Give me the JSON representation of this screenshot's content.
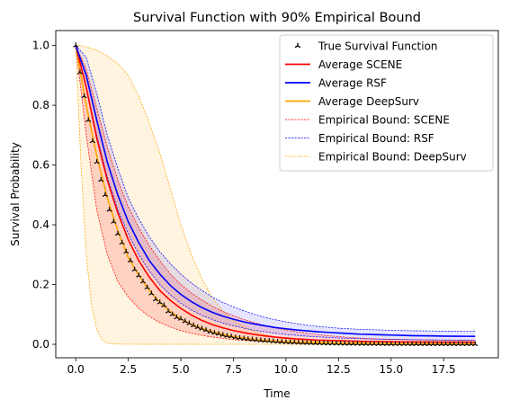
{
  "chart_data": {
    "type": "line",
    "title": "Survival Function with 90% Empirical Bound",
    "xlabel": "Time",
    "ylabel": "Survival Probability",
    "xlim": [
      -0.95,
      20.1
    ],
    "ylim": [
      -0.045,
      1.05
    ],
    "xticks": [
      0.0,
      2.5,
      5.0,
      7.5,
      10.0,
      12.5,
      15.0,
      17.5
    ],
    "xtick_labels": [
      "0.0",
      "2.5",
      "5.0",
      "7.5",
      "10.0",
      "12.5",
      "15.0",
      "17.5"
    ],
    "yticks": [
      0.0,
      0.2,
      0.4,
      0.6,
      0.8,
      1.0
    ],
    "ytick_labels": [
      "0.0",
      "0.2",
      "0.4",
      "0.6",
      "0.8",
      "1.0"
    ],
    "grid": false,
    "legend_position": "top-right",
    "colors": {
      "scene": "#ff0000",
      "rsf": "#0000ff",
      "deepsurv": "#ffa500",
      "true": "#000000"
    },
    "series": [
      {
        "name": "True Survival Function",
        "style": "marker",
        "x": [
          0.0,
          0.2,
          0.4,
          0.6,
          0.8,
          1.0,
          1.2,
          1.4,
          1.6,
          1.8,
          2.0,
          2.2,
          2.4,
          2.6,
          2.8,
          3.0,
          3.2,
          3.4,
          3.6,
          3.8,
          4.0,
          4.2,
          4.4,
          4.6,
          4.8,
          5.0,
          5.2,
          5.4,
          5.6,
          5.8,
          6.0,
          6.2,
          6.4,
          6.6,
          6.8,
          7.0,
          7.2,
          7.4,
          7.6,
          7.8,
          8.0,
          8.2,
          8.4,
          8.6,
          8.8,
          9.0,
          9.2,
          9.4,
          9.6,
          9.8,
          10.0,
          10.2,
          10.4,
          10.6,
          10.8,
          11.0,
          11.2,
          11.4,
          11.6,
          11.8,
          12.0,
          12.2,
          12.4,
          12.6,
          12.8,
          13.0,
          13.2,
          13.4,
          13.6,
          13.8,
          14.0,
          14.2,
          14.4,
          14.6,
          14.8,
          15.0,
          15.2,
          15.4,
          15.6,
          15.8,
          16.0,
          16.2,
          16.4,
          16.6,
          16.8,
          17.0,
          17.2,
          17.4,
          17.6,
          17.8,
          18.0,
          18.2,
          18.4,
          18.6,
          18.8,
          19.0
        ],
        "y": [
          1.0,
          0.91,
          0.83,
          0.75,
          0.68,
          0.61,
          0.55,
          0.5,
          0.45,
          0.41,
          0.37,
          0.34,
          0.31,
          0.28,
          0.25,
          0.23,
          0.21,
          0.19,
          0.17,
          0.15,
          0.14,
          0.13,
          0.11,
          0.1,
          0.09,
          0.085,
          0.077,
          0.07,
          0.063,
          0.057,
          0.052,
          0.047,
          0.042,
          0.038,
          0.035,
          0.031,
          0.028,
          0.026,
          0.023,
          0.021,
          0.019,
          0.017,
          0.016,
          0.014,
          0.013,
          0.012,
          0.011,
          0.0095,
          0.0086,
          0.0078,
          0.007,
          0.0063,
          0.0057,
          0.0052,
          0.0047,
          0.0042,
          0.0038,
          0.0034,
          0.0031,
          0.0028,
          0.0025,
          0.0023,
          0.0021,
          0.0019,
          0.0017,
          0.0015,
          0.0014,
          0.0013,
          0.0011,
          0.001,
          0.0009,
          0.0008,
          0.0007,
          0.0007,
          0.0006,
          0.0006,
          0.0005,
          0.0005,
          0.0004,
          0.0004,
          0.0003,
          0.0003,
          0.0003,
          0.0003,
          0.0002,
          0.0002,
          0.0002,
          0.0002,
          0.0002,
          0.0001,
          0.0001,
          0.0001,
          0.0001,
          0.0001,
          0.0001,
          0.0001
        ]
      },
      {
        "name": "Average SCENE",
        "style": "line",
        "x": [
          0.0,
          0.5,
          1.0,
          1.5,
          2.0,
          2.5,
          3.0,
          3.5,
          4.0,
          4.5,
          5.0,
          5.5,
          6.0,
          6.5,
          7.0,
          7.5,
          8.0,
          8.5,
          9.0,
          9.5,
          10.0,
          10.5,
          11.0,
          11.5,
          12.0,
          12.5,
          13.0,
          13.5,
          14.0,
          14.5,
          15.0,
          15.5,
          16.0,
          16.5,
          17.0,
          17.5,
          18.0,
          18.5,
          19.0
        ],
        "y": [
          1.0,
          0.86,
          0.69,
          0.55,
          0.44,
          0.35,
          0.28,
          0.225,
          0.18,
          0.147,
          0.12,
          0.098,
          0.08,
          0.066,
          0.055,
          0.046,
          0.039,
          0.033,
          0.028,
          0.024,
          0.021,
          0.018,
          0.016,
          0.014,
          0.013,
          0.012,
          0.011,
          0.01,
          0.0095,
          0.009,
          0.0085,
          0.008,
          0.0078,
          0.0076,
          0.0074,
          0.0072,
          0.0071,
          0.007,
          0.007
        ]
      },
      {
        "name": "Average RSF",
        "style": "line",
        "x": [
          0.0,
          0.5,
          1.0,
          1.5,
          2.0,
          2.5,
          3.0,
          3.5,
          4.0,
          4.5,
          5.0,
          5.5,
          6.0,
          6.5,
          7.0,
          7.5,
          8.0,
          8.5,
          9.0,
          9.5,
          10.0,
          10.5,
          11.0,
          11.5,
          12.0,
          12.5,
          13.0,
          13.5,
          14.0,
          14.5,
          15.0,
          15.5,
          16.0,
          16.5,
          17.0,
          17.5,
          18.0,
          18.5,
          19.0
        ],
        "y": [
          1.0,
          0.9,
          0.75,
          0.61,
          0.5,
          0.41,
          0.34,
          0.28,
          0.235,
          0.197,
          0.167,
          0.143,
          0.123,
          0.107,
          0.094,
          0.084,
          0.075,
          0.068,
          0.062,
          0.056,
          0.052,
          0.048,
          0.045,
          0.042,
          0.04,
          0.038,
          0.036,
          0.034,
          0.033,
          0.032,
          0.031,
          0.03,
          0.029,
          0.0285,
          0.028,
          0.0275,
          0.027,
          0.0268,
          0.0265
        ]
      },
      {
        "name": "Average DeepSurv",
        "style": "line",
        "x": [
          0.0,
          0.5,
          1.0,
          1.5,
          2.0,
          2.5,
          3.0,
          3.5,
          4.0,
          4.5,
          5.0,
          5.5,
          6.0,
          6.5,
          7.0,
          7.5,
          8.0,
          8.5,
          9.0,
          9.5,
          10.0,
          10.5,
          11.0,
          11.5,
          12.0,
          12.5,
          13.0,
          13.5,
          14.0,
          14.5,
          15.0,
          15.5,
          16.0,
          16.5,
          17.0,
          17.5,
          18.0,
          18.5,
          19.0
        ],
        "y": [
          1.0,
          0.8,
          0.63,
          0.49,
          0.38,
          0.29,
          0.23,
          0.18,
          0.14,
          0.11,
          0.085,
          0.067,
          0.053,
          0.042,
          0.033,
          0.026,
          0.021,
          0.017,
          0.013,
          0.011,
          0.009,
          0.007,
          0.006,
          0.005,
          0.004,
          0.0035,
          0.003,
          0.0025,
          0.002,
          0.0018,
          0.0015,
          0.0013,
          0.0011,
          0.001,
          0.0009,
          0.0008,
          0.0007,
          0.0006,
          0.0005
        ]
      }
    ],
    "bounds": [
      {
        "name": "Empirical Bound: SCENE",
        "x": [
          0.0,
          0.5,
          1.0,
          1.5,
          2.0,
          2.5,
          3.0,
          3.5,
          4.0,
          4.5,
          5.0,
          5.5,
          6.0,
          6.5,
          7.0,
          7.5,
          8.0,
          8.5,
          9.0,
          9.5,
          10.0,
          10.5,
          11.0,
          11.5,
          12.0,
          12.5,
          13.0,
          13.5,
          14.0,
          14.5,
          15.0,
          15.5,
          16.0,
          16.5,
          17.0,
          17.5,
          18.0,
          18.5,
          19.0
        ],
        "lower": [
          1.0,
          0.7,
          0.45,
          0.3,
          0.21,
          0.158,
          0.12,
          0.093,
          0.073,
          0.058,
          0.046,
          0.037,
          0.03,
          0.024,
          0.02,
          0.016,
          0.013,
          0.011,
          0.009,
          0.007,
          0.006,
          0.005,
          0.004,
          0.0035,
          0.003,
          0.0025,
          0.002,
          0.0018,
          0.0015,
          0.0013,
          0.0011,
          0.001,
          0.0009,
          0.0008,
          0.0007,
          0.0006,
          0.0006,
          0.0005,
          0.0005
        ],
        "upper": [
          1.0,
          0.92,
          0.79,
          0.66,
          0.55,
          0.46,
          0.39,
          0.33,
          0.28,
          0.235,
          0.2,
          0.172,
          0.148,
          0.127,
          0.11,
          0.096,
          0.083,
          0.072,
          0.063,
          0.055,
          0.048,
          0.042,
          0.037,
          0.033,
          0.029,
          0.026,
          0.023,
          0.021,
          0.019,
          0.018,
          0.017,
          0.016,
          0.0155,
          0.015,
          0.0145,
          0.014,
          0.014,
          0.0135,
          0.0135
        ]
      },
      {
        "name": "Empirical Bound: RSF",
        "x": [
          0.0,
          0.5,
          1.0,
          1.5,
          2.0,
          2.5,
          3.0,
          3.5,
          4.0,
          4.5,
          5.0,
          5.5,
          6.0,
          6.5,
          7.0,
          7.5,
          8.0,
          8.5,
          9.0,
          9.5,
          10.0,
          10.5,
          11.0,
          11.5,
          12.0,
          12.5,
          13.0,
          13.5,
          14.0,
          14.5,
          15.0,
          15.5,
          16.0,
          16.5,
          17.0,
          17.5,
          18.0,
          18.5,
          19.0
        ],
        "lower": [
          1.0,
          0.86,
          0.7,
          0.56,
          0.45,
          0.37,
          0.3,
          0.245,
          0.2,
          0.165,
          0.137,
          0.115,
          0.097,
          0.083,
          0.071,
          0.062,
          0.054,
          0.047,
          0.042,
          0.037,
          0.033,
          0.03,
          0.027,
          0.025,
          0.023,
          0.021,
          0.02,
          0.019,
          0.018,
          0.0172,
          0.0165,
          0.016,
          0.0155,
          0.015,
          0.0148,
          0.0145,
          0.0142,
          0.014,
          0.0138
        ],
        "upper": [
          1.0,
          0.96,
          0.84,
          0.7,
          0.59,
          0.49,
          0.42,
          0.36,
          0.31,
          0.27,
          0.235,
          0.205,
          0.18,
          0.158,
          0.14,
          0.125,
          0.112,
          0.1,
          0.09,
          0.082,
          0.075,
          0.069,
          0.064,
          0.06,
          0.057,
          0.054,
          0.052,
          0.05,
          0.049,
          0.048,
          0.047,
          0.046,
          0.0455,
          0.045,
          0.0445,
          0.044,
          0.044,
          0.0435,
          0.0435
        ]
      },
      {
        "name": "Empirical Bound: DeepSurv",
        "x": [
          0.0,
          0.25,
          0.5,
          0.75,
          1.0,
          1.25,
          1.5,
          2.0,
          2.5,
          3.0,
          3.5,
          4.0,
          4.5,
          5.0,
          5.5,
          6.0,
          6.5,
          7.0,
          7.5,
          8.0,
          8.5,
          9.0,
          9.5,
          10.0,
          10.5,
          11.0,
          11.5,
          12.0,
          12.5,
          13.0,
          13.5,
          14.0,
          14.5,
          15.0,
          15.5,
          16.0,
          16.5,
          17.0,
          17.5,
          18.0,
          18.5,
          19.0
        ],
        "lower": [
          1.0,
          0.6,
          0.3,
          0.13,
          0.05,
          0.015,
          0.004,
          0.0008,
          0.0003,
          0.0002,
          0.0001,
          0.0001,
          0.0001,
          0.0001,
          0.0001,
          0.0,
          0.0,
          0.0,
          0.0,
          0.0,
          0.0,
          0.0,
          0.0,
          0.0,
          0.0,
          0.0,
          0.0,
          0.0,
          0.0,
          0.0,
          0.0,
          0.0,
          0.0,
          0.0,
          0.0,
          0.0,
          0.0,
          0.0,
          0.0,
          0.0,
          0.0,
          0.0
        ],
        "upper": [
          1.0,
          1.0,
          0.995,
          0.99,
          0.985,
          0.975,
          0.965,
          0.94,
          0.9,
          0.83,
          0.74,
          0.64,
          0.52,
          0.4,
          0.3,
          0.22,
          0.155,
          0.11,
          0.08,
          0.058,
          0.043,
          0.032,
          0.024,
          0.018,
          0.014,
          0.011,
          0.009,
          0.0075,
          0.0065,
          0.0058,
          0.0052,
          0.0047,
          0.0043,
          0.004,
          0.0037,
          0.0035,
          0.0033,
          0.0031,
          0.003,
          0.0029,
          0.0028,
          0.0028
        ]
      }
    ],
    "legend": [
      {
        "label": "True Survival Function",
        "kind": "marker",
        "color": "#000000"
      },
      {
        "label": "Average SCENE",
        "kind": "line",
        "color": "#ff0000"
      },
      {
        "label": "Average RSF",
        "kind": "line",
        "color": "#0000ff"
      },
      {
        "label": "Average DeepSurv",
        "kind": "line",
        "color": "#ffa500"
      },
      {
        "label": "Empirical Bound: SCENE",
        "kind": "dashed",
        "color": "#ff0000"
      },
      {
        "label": "Empirical Bound: RSF",
        "kind": "dashed",
        "color": "#0000ff"
      },
      {
        "label": "Empirical Bound: DeepSurv",
        "kind": "dashed",
        "color": "#ffa500"
      }
    ]
  }
}
